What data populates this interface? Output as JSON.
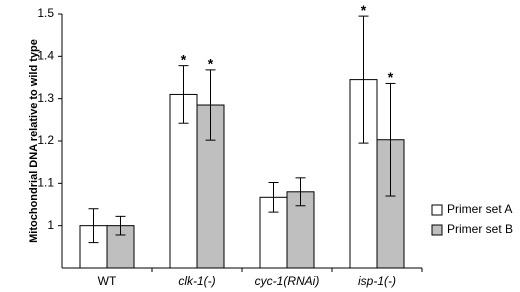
{
  "chart_data": {
    "type": "bar",
    "y_label": "Mitochondrial DNA relative to wild type",
    "categories": [
      "WT",
      "clk-1(-)",
      "cyc-1(RNAi)",
      "isp-1(-)"
    ],
    "italic_categories": [
      false,
      true,
      true,
      true
    ],
    "series": [
      {
        "name": "Primer set A",
        "color": "#ffffff",
        "values": [
          1.0,
          1.31,
          1.067,
          1.345
        ],
        "errors": [
          0.04,
          0.068,
          0.035,
          0.15
        ],
        "markers": [
          null,
          "*",
          null,
          "*"
        ]
      },
      {
        "name": "Primer set B",
        "color": "#bfbfbf",
        "values": [
          1.0,
          1.285,
          1.08,
          1.203
        ],
        "errors": [
          0.022,
          0.083,
          0.033,
          0.133
        ],
        "markers": [
          null,
          "*",
          null,
          "*"
        ]
      }
    ],
    "ylim": [
      0.9,
      1.5
    ],
    "yticks": [
      1,
      1.1,
      1.2,
      1.3,
      1.4,
      1.5
    ],
    "legend": "right"
  }
}
